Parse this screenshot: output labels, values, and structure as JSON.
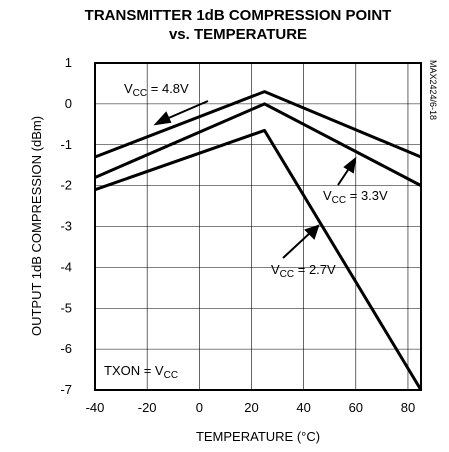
{
  "chart_data": {
    "type": "line",
    "title_line1": "TRANSMITTER 1dB COMPRESSION POINT",
    "title_line2": "vs. TEMPERATURE",
    "xlabel": "TEMPERATURE (°C)",
    "ylabel": "OUTPUT 1dB COMPRESSION (dBm)",
    "xlim": [
      -40,
      85
    ],
    "ylim": [
      -7,
      1
    ],
    "xticks": [
      -40,
      -20,
      0,
      20,
      40,
      60,
      80
    ],
    "yticks": [
      1,
      0,
      -1,
      -2,
      -3,
      -4,
      -5,
      -6,
      -7
    ],
    "grid": true,
    "series": [
      {
        "name": "VCC = 4.8V",
        "x": [
          -40,
          25,
          85
        ],
        "y": [
          -1.3,
          0.3,
          -1.3
        ]
      },
      {
        "name": "VCC = 3.3V",
        "x": [
          -40,
          25,
          85
        ],
        "y": [
          -1.8,
          0.0,
          -2.0
        ]
      },
      {
        "name": "VCC = 2.7V",
        "x": [
          -40,
          25,
          85
        ],
        "y": [
          -2.1,
          -0.65,
          -7.0
        ]
      }
    ],
    "annotations": {
      "v48": {
        "main": "V",
        "sub": "CC",
        "rest": " = 4.8V"
      },
      "v33": {
        "main": "V",
        "sub": "CC",
        "rest": " = 3.3V"
      },
      "v27": {
        "main": "V",
        "sub": "CC",
        "rest": " = 2.7V"
      },
      "txon": {
        "main": "TXON = V",
        "sub": "CC",
        "rest": ""
      }
    },
    "code": "MAX2424/6-18"
  }
}
